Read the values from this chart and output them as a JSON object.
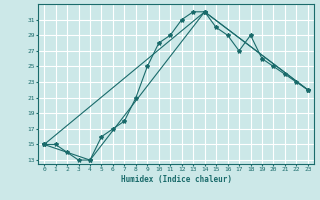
{
  "xlabel": "Humidex (Indice chaleur)",
  "background_color": "#cce8e8",
  "grid_color": "#ffffff",
  "line_color": "#1a6b6b",
  "xlim": [
    -0.5,
    23.5
  ],
  "ylim": [
    12.5,
    33.0
  ],
  "yticks": [
    13,
    15,
    17,
    19,
    21,
    23,
    25,
    27,
    29,
    31
  ],
  "xticks": [
    0,
    1,
    2,
    3,
    4,
    5,
    6,
    7,
    8,
    9,
    10,
    11,
    12,
    13,
    14,
    15,
    16,
    17,
    18,
    19,
    20,
    21,
    22,
    23
  ],
  "series": [
    {
      "x": [
        0,
        1,
        2,
        3,
        4,
        5,
        6,
        7,
        8,
        9,
        10,
        11,
        12,
        13,
        14,
        15,
        16,
        17,
        18,
        19,
        20,
        21,
        22,
        23
      ],
      "y": [
        15,
        15,
        14,
        13,
        13,
        16,
        17,
        18,
        21,
        25,
        28,
        29,
        31,
        32,
        32,
        30,
        29,
        27,
        29,
        26,
        25,
        24,
        23,
        22
      ]
    },
    {
      "x": [
        0,
        4,
        14,
        23
      ],
      "y": [
        15,
        13,
        32,
        22
      ]
    },
    {
      "x": [
        0,
        14,
        23
      ],
      "y": [
        15,
        32,
        22
      ]
    }
  ]
}
